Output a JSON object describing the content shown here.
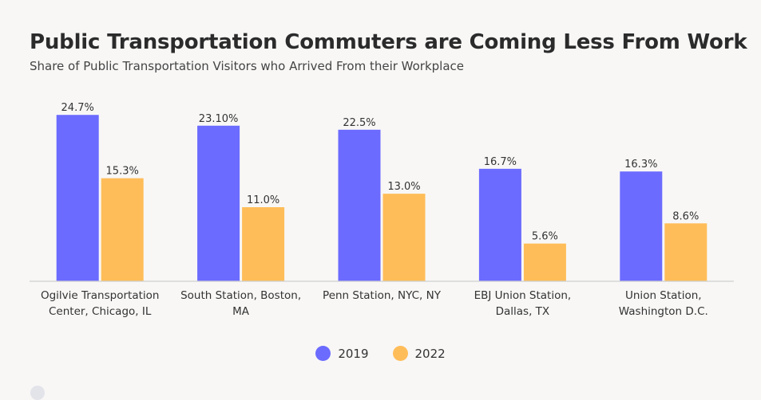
{
  "header": {
    "title": "Public Transportation Commuters are Coming Less From Work",
    "subtitle": "Share of Public Transportation Visitors who Arrived From their Workplace"
  },
  "chart_data": {
    "type": "bar",
    "title": "Public Transportation Commuters are Coming Less From Work",
    "subtitle": "Share of Public Transportation Visitors who Arrived From their Workplace",
    "categories": [
      [
        "Ogilvie Transportation",
        "Center, Chicago, IL"
      ],
      [
        "South Station, Boston,",
        "MA"
      ],
      [
        "Penn Station, NYC, NY"
      ],
      [
        "EBJ Union Station,",
        "Dallas, TX"
      ],
      [
        "Union Station,",
        "Washington D.C."
      ]
    ],
    "series": [
      {
        "name": "2019",
        "color": "#6b6bff",
        "values": [
          24.7,
          23.1,
          22.5,
          16.7,
          16.3
        ],
        "labels": [
          "24.7%",
          "23.10%",
          "22.5%",
          "16.7%",
          "16.3%"
        ]
      },
      {
        "name": "2022",
        "color": "#ffbd59",
        "values": [
          15.3,
          11.0,
          13.0,
          5.6,
          8.6
        ],
        "labels": [
          "15.3%",
          "11.0%",
          "13.0%",
          "5.6%",
          "8.6%"
        ]
      }
    ],
    "ylim": [
      0,
      25.2
    ],
    "grid": false,
    "legend_position": "bottom-center"
  }
}
